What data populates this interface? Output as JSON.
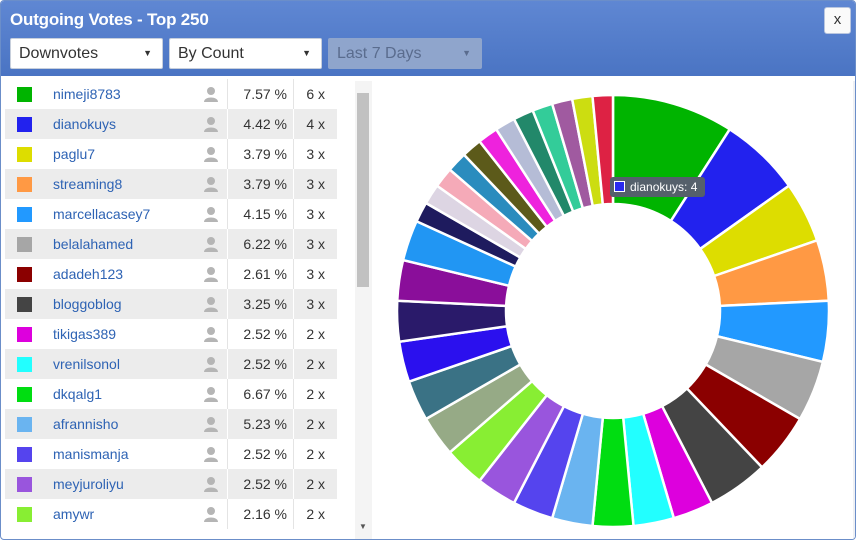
{
  "window": {
    "title": "Outgoing Votes - Top 250",
    "close_label": "x"
  },
  "filters": {
    "vote_type": "Downvotes",
    "sort": "By Count",
    "range": "Last 7 Days"
  },
  "rows": [
    {
      "color": "#00b400",
      "name": "nimeji8783",
      "pct": "7.57 %",
      "count": "6 x"
    },
    {
      "color": "#2222ee",
      "name": "dianokuys",
      "pct": "4.42 %",
      "count": "4 x"
    },
    {
      "color": "#dddd00",
      "name": "paglu7",
      "pct": "3.79 %",
      "count": "3 x"
    },
    {
      "color": "#ff9944",
      "name": "streaming8",
      "pct": "3.79 %",
      "count": "3 x"
    },
    {
      "color": "#2299ff",
      "name": "marcellacasey7",
      "pct": "4.15 %",
      "count": "3 x"
    },
    {
      "color": "#a6a6a6",
      "name": "belalahamed",
      "pct": "6.22 %",
      "count": "3 x"
    },
    {
      "color": "#8b0000",
      "name": "adadeh123",
      "pct": "2.61 %",
      "count": "3 x"
    },
    {
      "color": "#444444",
      "name": "bloggoblog",
      "pct": "3.25 %",
      "count": "3 x"
    },
    {
      "color": "#dd00dd",
      "name": "tikigas389",
      "pct": "2.52 %",
      "count": "2 x"
    },
    {
      "color": "#22ffff",
      "name": "vrenilsonol",
      "pct": "2.52 %",
      "count": "2 x"
    },
    {
      "color": "#00dd11",
      "name": "dkqalg1",
      "pct": "6.67 %",
      "count": "2 x"
    },
    {
      "color": "#6ab4f0",
      "name": "afrannisho",
      "pct": "5.23 %",
      "count": "2 x"
    },
    {
      "color": "#5544ee",
      "name": "manismanja",
      "pct": "2.52 %",
      "count": "2 x"
    },
    {
      "color": "#9955dd",
      "name": "meyjuroliyu",
      "pct": "2.52 %",
      "count": "2 x"
    },
    {
      "color": "#88ee33",
      "name": "amywr",
      "pct": "2.16 %",
      "count": "2 x"
    }
  ],
  "tooltip": {
    "label": "dianokuys: 4",
    "color": "#2a2aee"
  },
  "chart_data": {
    "type": "pie",
    "variant": "donut",
    "categories": [
      "nimeji8783",
      "dianokuys",
      "paglu7",
      "streaming8",
      "marcellacasey7",
      "belalahamed",
      "adadeh123",
      "bloggoblog",
      "tikigas389",
      "vrenilsonol",
      "dkqalg1",
      "afrannisho",
      "manismanja",
      "meyjuroliyu",
      "amywr",
      "",
      "",
      "",
      "",
      "",
      "",
      "",
      "",
      "",
      "",
      "",
      "",
      "",
      "",
      "",
      "",
      "",
      ""
    ],
    "values": [
      6,
      4,
      3,
      3,
      3,
      3,
      3,
      3,
      2,
      2,
      2,
      2,
      2,
      2,
      2,
      2,
      2,
      2,
      2,
      2,
      2,
      1,
      1,
      1,
      1,
      1,
      1,
      1,
      1,
      1,
      1,
      1,
      1
    ],
    "colors": [
      "#00b400",
      "#2222ee",
      "#dddd00",
      "#ff9944",
      "#2299ff",
      "#a6a6a6",
      "#8b0000",
      "#444444",
      "#dd00dd",
      "#22ffff",
      "#00dd11",
      "#6ab4f0",
      "#5544ee",
      "#9955dd",
      "#88ee33",
      "#96aa86",
      "#3a7285",
      "#2b10ee",
      "#2a1a6a",
      "#8a0e9a",
      "#2196f3",
      "#1e1b5e",
      "#ddd5e3",
      "#f5aab8",
      "#2a8cbe",
      "#5c5a1a",
      "#ee22dd",
      "#b5bcd6",
      "#22886a",
      "#33cc99",
      "#a05aa0",
      "#ccdd11",
      "#dd2244"
    ],
    "start_angle_deg": 0,
    "legend": "none"
  }
}
